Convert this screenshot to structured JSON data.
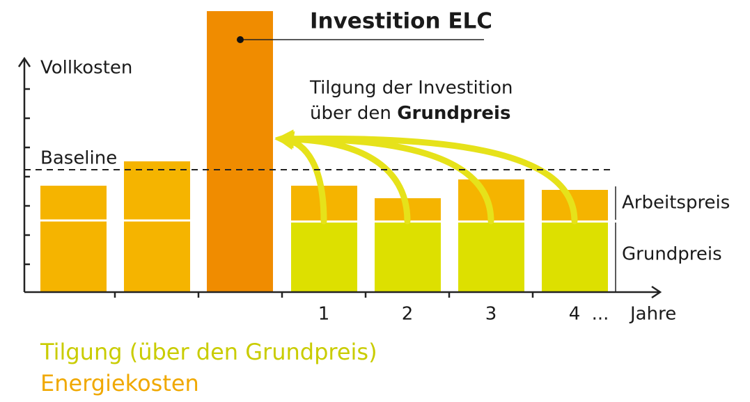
{
  "title": "Investition ELC",
  "y_axis_label": "Vollkosten",
  "baseline_label": "Baseline",
  "annotation": {
    "line1": "Tilgung der Investition",
    "line2_prefix": "über den",
    "line2_bold": "Grundpreis"
  },
  "segment_labels": {
    "top": "Arbeitspreis",
    "bottom": "Grundpreis"
  },
  "x_labels": [
    "1",
    "2",
    "3",
    "4",
    "..."
  ],
  "x_axis_label": "Jahre",
  "legend": {
    "tilgung": "Tilgung (über den Grundpreis)",
    "energie": "Energiekosten"
  }
}
